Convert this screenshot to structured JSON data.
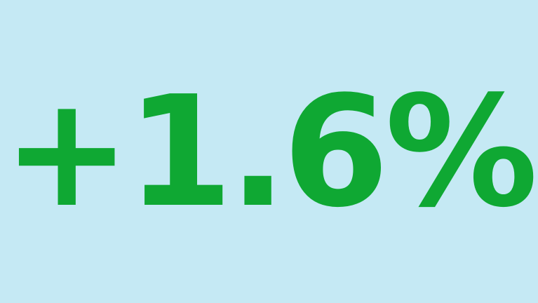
{
  "stat": {
    "value": "+1.6%"
  },
  "colors": {
    "background": "#c5e9f4",
    "value": "#0fa833"
  }
}
